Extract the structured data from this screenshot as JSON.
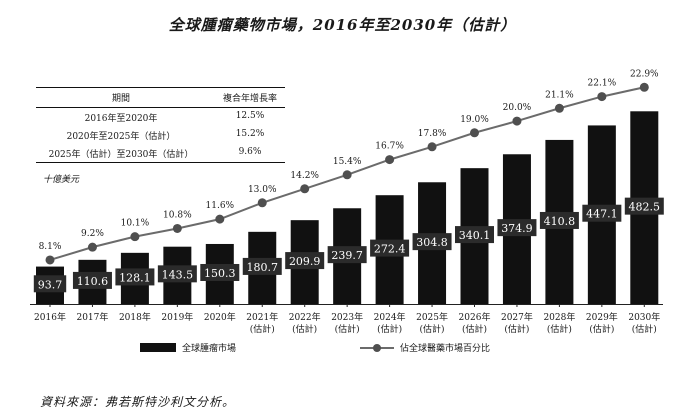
{
  "title": "全球腫瘤藥物市場，2016年至2030年（估計）",
  "cagr_table": {
    "headers": [
      "期間",
      "複合年增長率"
    ],
    "rows": [
      {
        "period": "2016年至2020年",
        "rate": "12.5%"
      },
      {
        "period": "2020年至2025年（估計）",
        "rate": "15.2%"
      },
      {
        "period": "2025年（估計）至2030年（估計）",
        "rate": "9.6%"
      }
    ]
  },
  "unit_label": "十億美元",
  "source": "資料來源：弗若斯特沙利文分析。",
  "legend": {
    "bar": "全球腫瘤市場",
    "line": "佔全球醫藥市場百分比"
  },
  "colors": {
    "bar": "#111111",
    "line": "#6b6b6b",
    "marker": "#4f4f4f",
    "bar_label_bg": "#2b2b2b"
  },
  "chart_data": {
    "type": "bar",
    "categories": [
      [
        "2016年"
      ],
      [
        "2017年"
      ],
      [
        "2018年"
      ],
      [
        "2019年"
      ],
      [
        "2020年"
      ],
      [
        "2021年",
        "(估計)"
      ],
      [
        "2022年",
        "(估計)"
      ],
      [
        "2023年",
        "(估計)"
      ],
      [
        "2024年",
        "(估計)"
      ],
      [
        "2025年",
        "(估計)"
      ],
      [
        "2026年",
        "(估計)"
      ],
      [
        "2027年",
        "(估計)"
      ],
      [
        "2028年",
        "(估計)"
      ],
      [
        "2029年",
        "(估計)"
      ],
      [
        "2030年",
        "(估計)"
      ]
    ],
    "series": [
      {
        "name": "全球腫瘤市場",
        "type": "bar",
        "values": [
          93.7,
          110.6,
          128.1,
          143.5,
          150.3,
          180.7,
          209.9,
          239.7,
          272.4,
          304.8,
          340.1,
          374.9,
          410.8,
          447.1,
          482.5
        ],
        "labels": [
          "93.7",
          "110.6",
          "128.1",
          "143.5",
          "150.3",
          "180.7",
          "209.9",
          "239.7",
          "272.4",
          "304.8",
          "340.1",
          "374.9",
          "410.8",
          "447.1",
          "482.5"
        ]
      },
      {
        "name": "佔全球醫藥市場百分比",
        "type": "line",
        "values": [
          8.1,
          9.2,
          10.1,
          10.8,
          11.6,
          13.0,
          14.2,
          15.4,
          16.7,
          17.8,
          19.0,
          20.0,
          21.1,
          22.1,
          22.9
        ],
        "labels": [
          "8.1%",
          "9.2%",
          "10.1%",
          "10.8%",
          "11.6%",
          "13.0%",
          "14.2%",
          "15.4%",
          "16.7%",
          "17.8%",
          "19.0%",
          "20.0%",
          "21.1%",
          "22.1%",
          "22.9%"
        ]
      }
    ],
    "ylim_bar": [
      0,
      500
    ],
    "ylim_line": [
      0,
      23
    ],
    "grid": false
  }
}
